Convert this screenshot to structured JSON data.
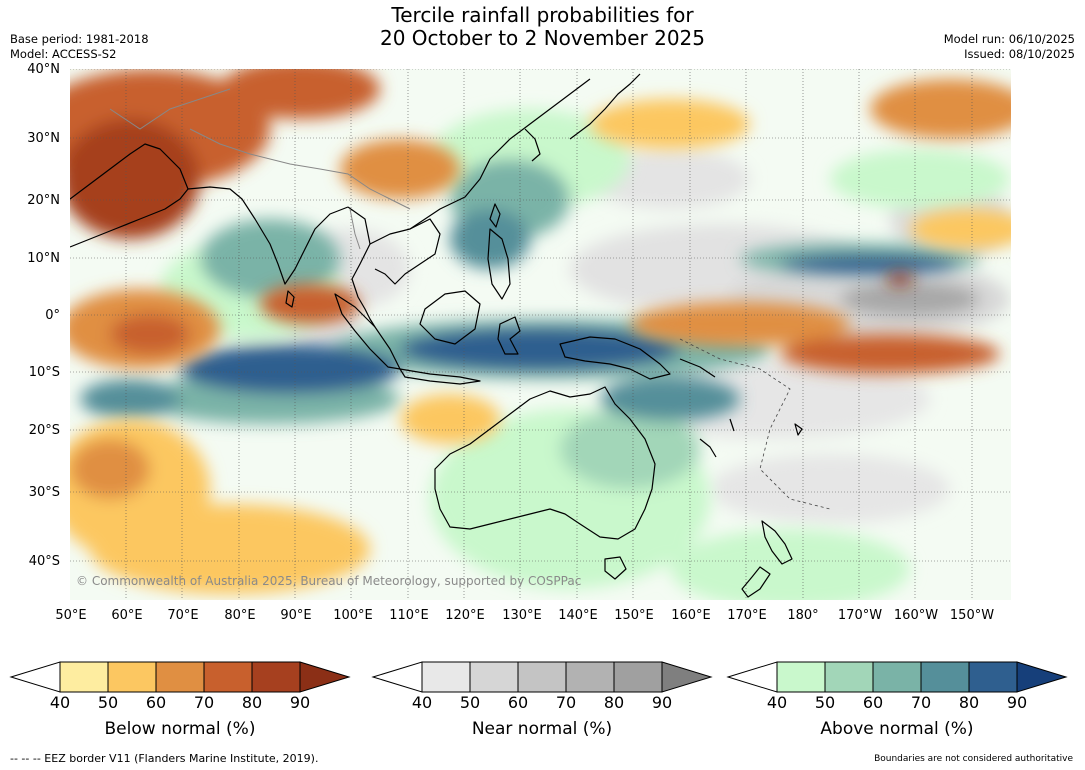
{
  "title": {
    "line1": "Tercile rainfall probabilities for",
    "line2": "20 October to 2 November 2025"
  },
  "meta": {
    "base_period": "Base period: 1981-2018",
    "model": "Model: ACCESS-S2",
    "model_run": "Model run: 06/10/2025",
    "issued": "Issued: 08/10/2025"
  },
  "map": {
    "lat_labels": [
      "40°N",
      "30°N",
      "20°N",
      "10°N",
      "0°",
      "10°S",
      "20°S",
      "30°S",
      "40°S"
    ],
    "lon_labels": [
      "50°E",
      "60°E",
      "70°E",
      "80°E",
      "90°E",
      "100°E",
      "110°E",
      "120°E",
      "130°E",
      "140°E",
      "150°E",
      "160°E",
      "170°E",
      "180°",
      "170°W",
      "160°W",
      "150°W"
    ],
    "copyright": "© Commonwealth of Australia 2025, Bureau of Meteorology, supported by COSPPac"
  },
  "colorbars": [
    {
      "name": "below",
      "label": "Below normal (%)",
      "ticks": [
        "40",
        "50",
        "60",
        "70",
        "80",
        "90"
      ],
      "colors": [
        "#ffffff",
        "#feeda0",
        "#fcc761",
        "#e08f42",
        "#c8602d",
        "#a6401f",
        "#8b2f16"
      ]
    },
    {
      "name": "near",
      "label": "Near normal (%)",
      "ticks": [
        "40",
        "50",
        "60",
        "70",
        "80",
        "90"
      ],
      "colors": [
        "#ffffff",
        "#e8e8e8",
        "#d6d6d6",
        "#c4c4c4",
        "#b2b2b2",
        "#a0a0a0",
        "#7f7f7f"
      ]
    },
    {
      "name": "above",
      "label": "Above normal (%)",
      "ticks": [
        "40",
        "50",
        "60",
        "70",
        "80",
        "90"
      ],
      "colors": [
        "#ffffff",
        "#c9f8cc",
        "#a2d6b8",
        "#7ab3a7",
        "#558f9a",
        "#2f5f8f",
        "#163f7a"
      ]
    }
  ],
  "footer": {
    "eez_note": "--  --  -- EEZ border V11 (Flanders Marine Institute, 2019).",
    "boundary_note": "Boundaries are not considered authoritative"
  }
}
